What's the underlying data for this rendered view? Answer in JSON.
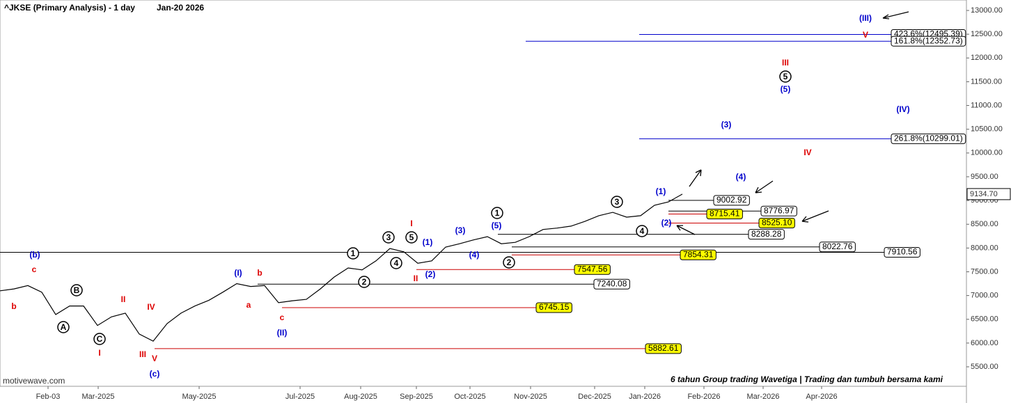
{
  "chart_data": {
    "type": "line",
    "title": "^JKSE (Primary Analysis) - 1 day",
    "date": "Jan-20 2026",
    "watermark": "motivewave.com",
    "caption": "6 tahun Group trading Wavetiga | Trading dan tumbuh bersama kami",
    "color": "#000000",
    "values": [
      7100,
      7140,
      7210,
      7070,
      6600,
      6780,
      6780,
      6370,
      6550,
      6630,
      6190,
      6040,
      6410,
      6630,
      6780,
      6900,
      7070,
      7250,
      7190,
      7210,
      6850,
      6890,
      6920,
      7140,
      7390,
      7580,
      7540,
      7730,
      7990,
      7920,
      7680,
      7730,
      8020,
      8090,
      8170,
      8240,
      8090,
      8120,
      8240,
      8390,
      8420,
      8460,
      8560,
      8680,
      8750,
      8650,
      8680,
      8900,
      8970,
      9134.7
    ],
    "last_price_label": "9134.70",
    "x_tick_labels": [
      "Feb-03",
      "Mar-2025",
      "May-2025",
      "Jul-2025",
      "Aug-2025",
      "Sep-2025",
      "Oct-2025",
      "Nov-2025",
      "Dec-2025",
      "Jan-2026",
      "Feb-2026",
      "Mar-2026",
      "Apr-2026"
    ],
    "ylim": [
      5090,
      13220
    ],
    "yticks": [
      {
        "value": 5500,
        "label": "5500.00"
      },
      {
        "value": 6000,
        "label": "6000.00"
      },
      {
        "value": 6500,
        "label": "6500.00"
      },
      {
        "value": 7000,
        "label": "7000.00"
      },
      {
        "value": 7500,
        "label": "7500.00"
      },
      {
        "value": 8000,
        "label": "8000.00"
      },
      {
        "value": 8500,
        "label": "8500.00"
      },
      {
        "value": 9000,
        "label": "9000.00"
      },
      {
        "value": 9500,
        "label": "9500.00"
      },
      {
        "value": 10000,
        "label": "10000.00"
      },
      {
        "value": 10500,
        "label": "10500.00"
      },
      {
        "value": 11000,
        "label": "11000.00"
      },
      {
        "value": 11500,
        "label": "11500.00"
      },
      {
        "value": 12000,
        "label": "12000.00"
      },
      {
        "value": 12500,
        "label": "12500.00"
      },
      {
        "value": 13000,
        "label": "13000.00"
      }
    ],
    "levels": [
      {
        "value": 12495.39,
        "label": "423.6%(12495.39)",
        "color": "#0000cc",
        "box": "#ffffff"
      },
      {
        "value": 12352.73,
        "label": "161.8%(12352.73)",
        "color": "#0000cc",
        "box": "#ffffff"
      },
      {
        "value": 10299.01,
        "label": "261.8%(10299.01)",
        "color": "#0000cc",
        "box": "#ffffff"
      },
      {
        "value": 9002.92,
        "label": "9002.92",
        "color": "#000000",
        "box": "#ffffff"
      },
      {
        "value": 8776.97,
        "label": "8776.97",
        "color": "#000000",
        "box": "#ffffff"
      },
      {
        "value": 8715.41,
        "label": "8715.41",
        "color": "#cc0000",
        "box": "#ffff00"
      },
      {
        "value": 8525.1,
        "label": "8525.10",
        "color": "#cc0000",
        "box": "#ffff00"
      },
      {
        "value": 8288.28,
        "label": "8288.28",
        "color": "#000000",
        "box": "#ffffff"
      },
      {
        "value": 8022.76,
        "label": "8022.76",
        "color": "#000000",
        "box": "#ffffff"
      },
      {
        "value": 7910.56,
        "label": "7910.56",
        "color": "#000000",
        "box": "#ffffff"
      },
      {
        "value": 7854.31,
        "label": "7854.31",
        "color": "#cc0000",
        "box": "#ffff00"
      },
      {
        "value": 7547.56,
        "label": "7547.56",
        "color": "#cc0000",
        "box": "#ffff00"
      },
      {
        "value": 7240.08,
        "label": "7240.08",
        "color": "#000000",
        "box": "#ffffff"
      },
      {
        "value": 6745.15,
        "label": "6745.15",
        "color": "#cc0000",
        "box": "#ffff00"
      },
      {
        "value": 5882.61,
        "label": "5882.61",
        "color": "#cc0000",
        "box": "#ffff00"
      }
    ],
    "wave_labels": [
      {
        "text": "A",
        "color": "#000000",
        "circled": true
      },
      {
        "text": "B",
        "color": "#000000",
        "circled": true
      },
      {
        "text": "C",
        "color": "#000000",
        "circled": true
      },
      {
        "text": "1",
        "color": "#000000",
        "circled": true
      },
      {
        "text": "2",
        "color": "#000000",
        "circled": true
      },
      {
        "text": "3",
        "color": "#000000",
        "circled": true
      },
      {
        "text": "4",
        "color": "#000000",
        "circled": true
      },
      {
        "text": "5",
        "color": "#000000",
        "circled": true
      },
      {
        "text": "1",
        "color": "#000000",
        "circled": true
      },
      {
        "text": "2",
        "color": "#000000",
        "circled": true
      },
      {
        "text": "3",
        "color": "#000000",
        "circled": true
      },
      {
        "text": "4",
        "color": "#000000",
        "circled": true
      },
      {
        "text": "5",
        "color": "#000000",
        "circled": true
      },
      {
        "text": "c",
        "color": "#dd0000",
        "circled": false
      },
      {
        "text": "b",
        "color": "#dd0000",
        "circled": false
      },
      {
        "text": "II",
        "color": "#dd0000",
        "circled": false
      },
      {
        "text": "IV",
        "color": "#dd0000",
        "circled": false
      },
      {
        "text": "I",
        "color": "#dd0000",
        "circled": false
      },
      {
        "text": "III",
        "color": "#dd0000",
        "circled": false
      },
      {
        "text": "V",
        "color": "#dd0000",
        "circled": false
      },
      {
        "text": "b",
        "color": "#dd0000",
        "circled": false
      },
      {
        "text": "a",
        "color": "#dd0000",
        "circled": false
      },
      {
        "text": "c",
        "color": "#dd0000",
        "circled": false
      },
      {
        "text": "I",
        "color": "#dd0000",
        "circled": false
      },
      {
        "text": "II",
        "color": "#dd0000",
        "circled": false
      },
      {
        "text": "III",
        "color": "#dd0000",
        "circled": false
      },
      {
        "text": "IV",
        "color": "#dd0000",
        "circled": false
      },
      {
        "text": "V",
        "color": "#dd0000",
        "circled": false
      },
      {
        "text": "(b)",
        "color": "#0000cc",
        "circled": false
      },
      {
        "text": "(c)",
        "color": "#0000cc",
        "circled": false
      },
      {
        "text": "(I)",
        "color": "#0000cc",
        "circled": false
      },
      {
        "text": "(II)",
        "color": "#0000cc",
        "circled": false
      },
      {
        "text": "(1)",
        "color": "#0000cc",
        "circled": false
      },
      {
        "text": "(2)",
        "color": "#0000cc",
        "circled": false
      },
      {
        "text": "(3)",
        "color": "#0000cc",
        "circled": false
      },
      {
        "text": "(4)",
        "color": "#0000cc",
        "circled": false
      },
      {
        "text": "(5)",
        "color": "#0000cc",
        "circled": false
      },
      {
        "text": "(1)",
        "color": "#0000cc",
        "circled": false
      },
      {
        "text": "(2)",
        "color": "#0000cc",
        "circled": false
      },
      {
        "text": "(3)",
        "color": "#0000cc",
        "circled": false
      },
      {
        "text": "(4)",
        "color": "#0000cc",
        "circled": false
      },
      {
        "text": "(5)",
        "color": "#0000cc",
        "circled": false
      },
      {
        "text": "(III)",
        "color": "#0000cc",
        "circled": false
      },
      {
        "text": "(IV)",
        "color": "#0000cc",
        "circled": false
      }
    ]
  }
}
